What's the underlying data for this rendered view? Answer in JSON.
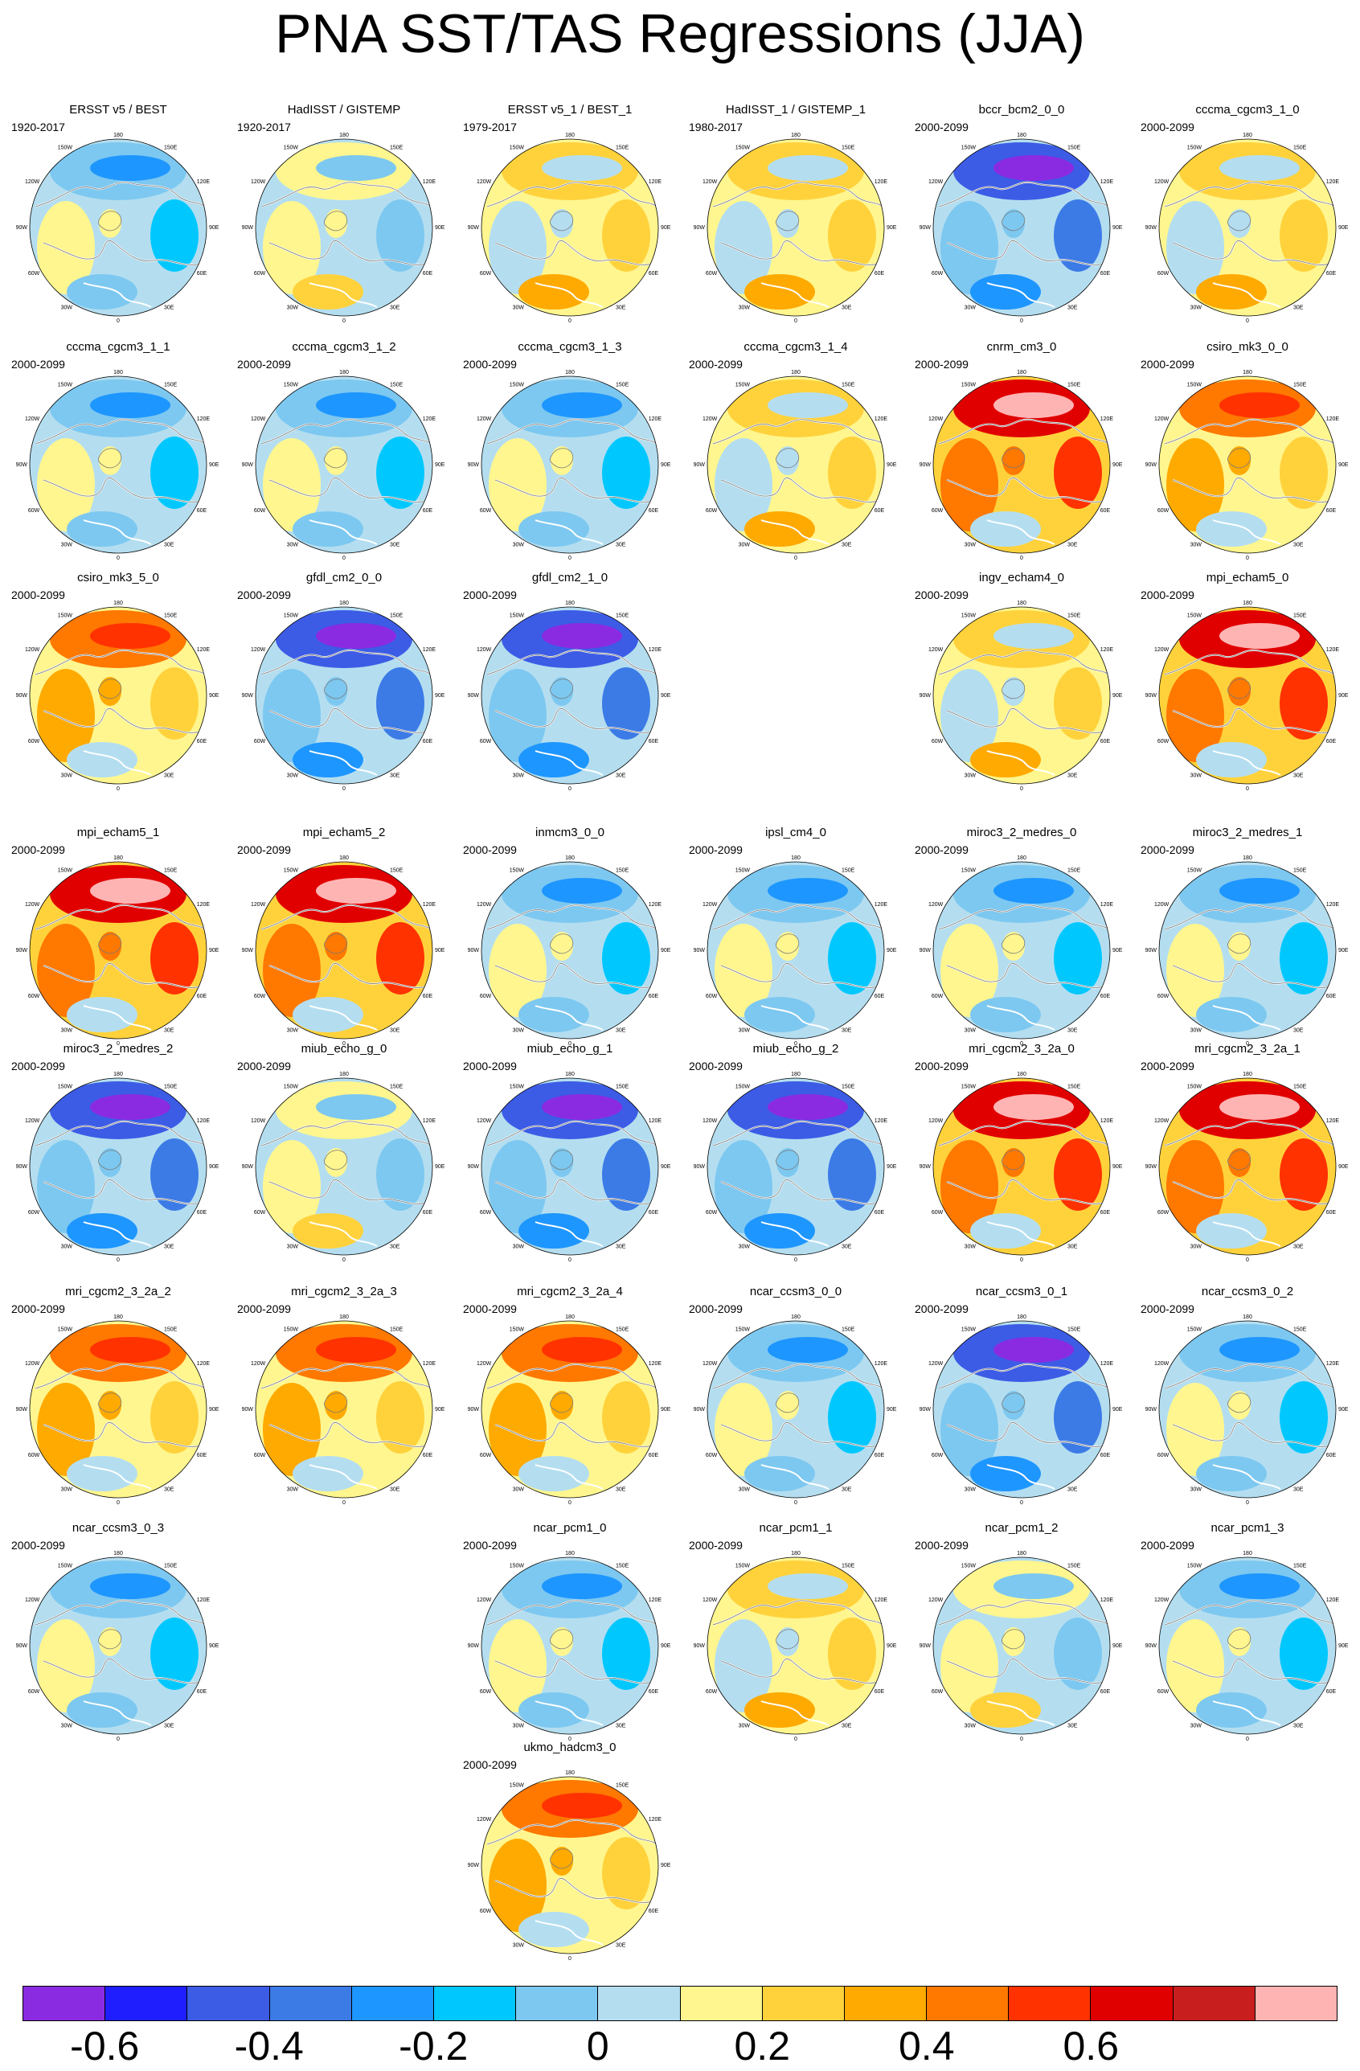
{
  "title": "PNA SST/TAS Regressions (JJA)",
  "colorbar": {
    "colors": [
      "#8a2be2",
      "#1e1eff",
      "#3c5ce6",
      "#3c7be6",
      "#1e96ff",
      "#00c8ff",
      "#7dc8f0",
      "#b4def0",
      "#fff68f",
      "#ffd23c",
      "#ffaa00",
      "#ff7800",
      "#ff3200",
      "#e10000",
      "#c81e1e",
      "#ffb4b4"
    ],
    "labels": [
      "-0.6",
      "-0.4",
      "-0.2",
      "0",
      "0.2",
      "0.4",
      "0.6"
    ]
  },
  "map_labels": {
    "top": "180",
    "bottom": "0",
    "left": "90W",
    "right": "90E",
    "ul": "120W",
    "ur": "120E",
    "ll": "60W",
    "lr": "60E",
    "ut": "150W",
    "ut2": "150E",
    "lb": "30W",
    "lb2": "30E"
  },
  "panels": [
    {
      "title": "ERSST v5 / BEST",
      "years": "1920-2017",
      "pattern": "blue",
      "row": 0,
      "col": 0
    },
    {
      "title": "HadISST / GISTEMP",
      "years": "1920-2017",
      "pattern": "light",
      "row": 0,
      "col": 1
    },
    {
      "title": "ERSST v5_1 / BEST_1",
      "years": "1979-2017",
      "pattern": "yellow",
      "row": 0,
      "col": 2
    },
    {
      "title": "HadISST_1 / GISTEMP_1",
      "years": "1980-2017",
      "pattern": "yellow",
      "row": 0,
      "col": 3
    },
    {
      "title": "bccr_bcm2_0_0",
      "years": "2000-2099",
      "pattern": "darkblue",
      "row": 0,
      "col": 4
    },
    {
      "title": "cccma_cgcm3_1_0",
      "years": "2000-2099",
      "pattern": "yellow",
      "row": 0,
      "col": 5
    },
    {
      "title": "cccma_cgcm3_1_1",
      "years": "2000-2099",
      "pattern": "blue",
      "row": 1,
      "col": 0
    },
    {
      "title": "cccma_cgcm3_1_2",
      "years": "2000-2099",
      "pattern": "blue",
      "row": 1,
      "col": 1
    },
    {
      "title": "cccma_cgcm3_1_3",
      "years": "2000-2099",
      "pattern": "blue",
      "row": 1,
      "col": 2
    },
    {
      "title": "cccma_cgcm3_1_4",
      "years": "2000-2099",
      "pattern": "yellow",
      "row": 1,
      "col": 3
    },
    {
      "title": "cnrm_cm3_0",
      "years": "2000-2099",
      "pattern": "red",
      "row": 1,
      "col": 4
    },
    {
      "title": "csiro_mk3_0_0",
      "years": "2000-2099",
      "pattern": "orange",
      "row": 1,
      "col": 5
    },
    {
      "title": "csiro_mk3_5_0",
      "years": "2000-2099",
      "pattern": "orange",
      "row": 2,
      "col": 0
    },
    {
      "title": "gfdl_cm2_0_0",
      "years": "2000-2099",
      "pattern": "darkblue",
      "row": 2,
      "col": 1
    },
    {
      "title": "gfdl_cm2_1_0",
      "years": "2000-2099",
      "pattern": "darkblue",
      "row": 2,
      "col": 2
    },
    {
      "title": "ingv_echam4_0",
      "years": "2000-2099",
      "pattern": "yellow",
      "row": 2,
      "col": 4
    },
    {
      "title": "mpi_echam5_0",
      "years": "2000-2099",
      "pattern": "red",
      "row": 2,
      "col": 5
    },
    {
      "title": "mpi_echam5_1",
      "years": "2000-2099",
      "pattern": "red",
      "row": 3,
      "col": 0
    },
    {
      "title": "mpi_echam5_2",
      "years": "2000-2099",
      "pattern": "red",
      "row": 3,
      "col": 1
    },
    {
      "title": "inmcm3_0_0",
      "years": "2000-2099",
      "pattern": "blue",
      "row": 3,
      "col": 2
    },
    {
      "title": "ipsl_cm4_0",
      "years": "2000-2099",
      "pattern": "blue",
      "row": 3,
      "col": 3
    },
    {
      "title": "miroc3_2_medres_0",
      "years": "2000-2099",
      "pattern": "blue",
      "row": 3,
      "col": 4
    },
    {
      "title": "miroc3_2_medres_1",
      "years": "2000-2099",
      "pattern": "blue",
      "row": 3,
      "col": 5
    },
    {
      "title": "miroc3_2_medres_2",
      "years": "2000-2099",
      "pattern": "darkblue",
      "row": 4,
      "col": 0
    },
    {
      "title": "miub_echo_g_0",
      "years": "2000-2099",
      "pattern": "light",
      "row": 4,
      "col": 1
    },
    {
      "title": "miub_echo_g_1",
      "years": "2000-2099",
      "pattern": "darkblue",
      "row": 4,
      "col": 2
    },
    {
      "title": "miub_echo_g_2",
      "years": "2000-2099",
      "pattern": "darkblue",
      "row": 4,
      "col": 3
    },
    {
      "title": "mri_cgcm2_3_2a_0",
      "years": "2000-2099",
      "pattern": "red",
      "row": 4,
      "col": 4
    },
    {
      "title": "mri_cgcm2_3_2a_1",
      "years": "2000-2099",
      "pattern": "red",
      "row": 4,
      "col": 5
    },
    {
      "title": "mri_cgcm2_3_2a_2",
      "years": "2000-2099",
      "pattern": "orange",
      "row": 5,
      "col": 0
    },
    {
      "title": "mri_cgcm2_3_2a_3",
      "years": "2000-2099",
      "pattern": "orange",
      "row": 5,
      "col": 1
    },
    {
      "title": "mri_cgcm2_3_2a_4",
      "years": "2000-2099",
      "pattern": "orange",
      "row": 5,
      "col": 2
    },
    {
      "title": "ncar_ccsm3_0_0",
      "years": "2000-2099",
      "pattern": "blue",
      "row": 5,
      "col": 3
    },
    {
      "title": "ncar_ccsm3_0_1",
      "years": "2000-2099",
      "pattern": "darkblue",
      "row": 5,
      "col": 4
    },
    {
      "title": "ncar_ccsm3_0_2",
      "years": "2000-2099",
      "pattern": "blue",
      "row": 5,
      "col": 5
    },
    {
      "title": "ncar_ccsm3_0_3",
      "years": "2000-2099",
      "pattern": "blue",
      "row": 6,
      "col": 0
    },
    {
      "title": "ncar_pcm1_0",
      "years": "2000-2099",
      "pattern": "blue",
      "row": 6,
      "col": 2
    },
    {
      "title": "ncar_pcm1_1",
      "years": "2000-2099",
      "pattern": "yellow",
      "row": 6,
      "col": 3
    },
    {
      "title": "ncar_pcm1_2",
      "years": "2000-2099",
      "pattern": "light",
      "row": 6,
      "col": 4
    },
    {
      "title": "ncar_pcm1_3",
      "years": "2000-2099",
      "pattern": "blue",
      "row": 6,
      "col": 5
    },
    {
      "title": "ukmo_hadcm3_0",
      "years": "2000-2099",
      "pattern": "orange",
      "row": 7,
      "col": 2
    }
  ]
}
